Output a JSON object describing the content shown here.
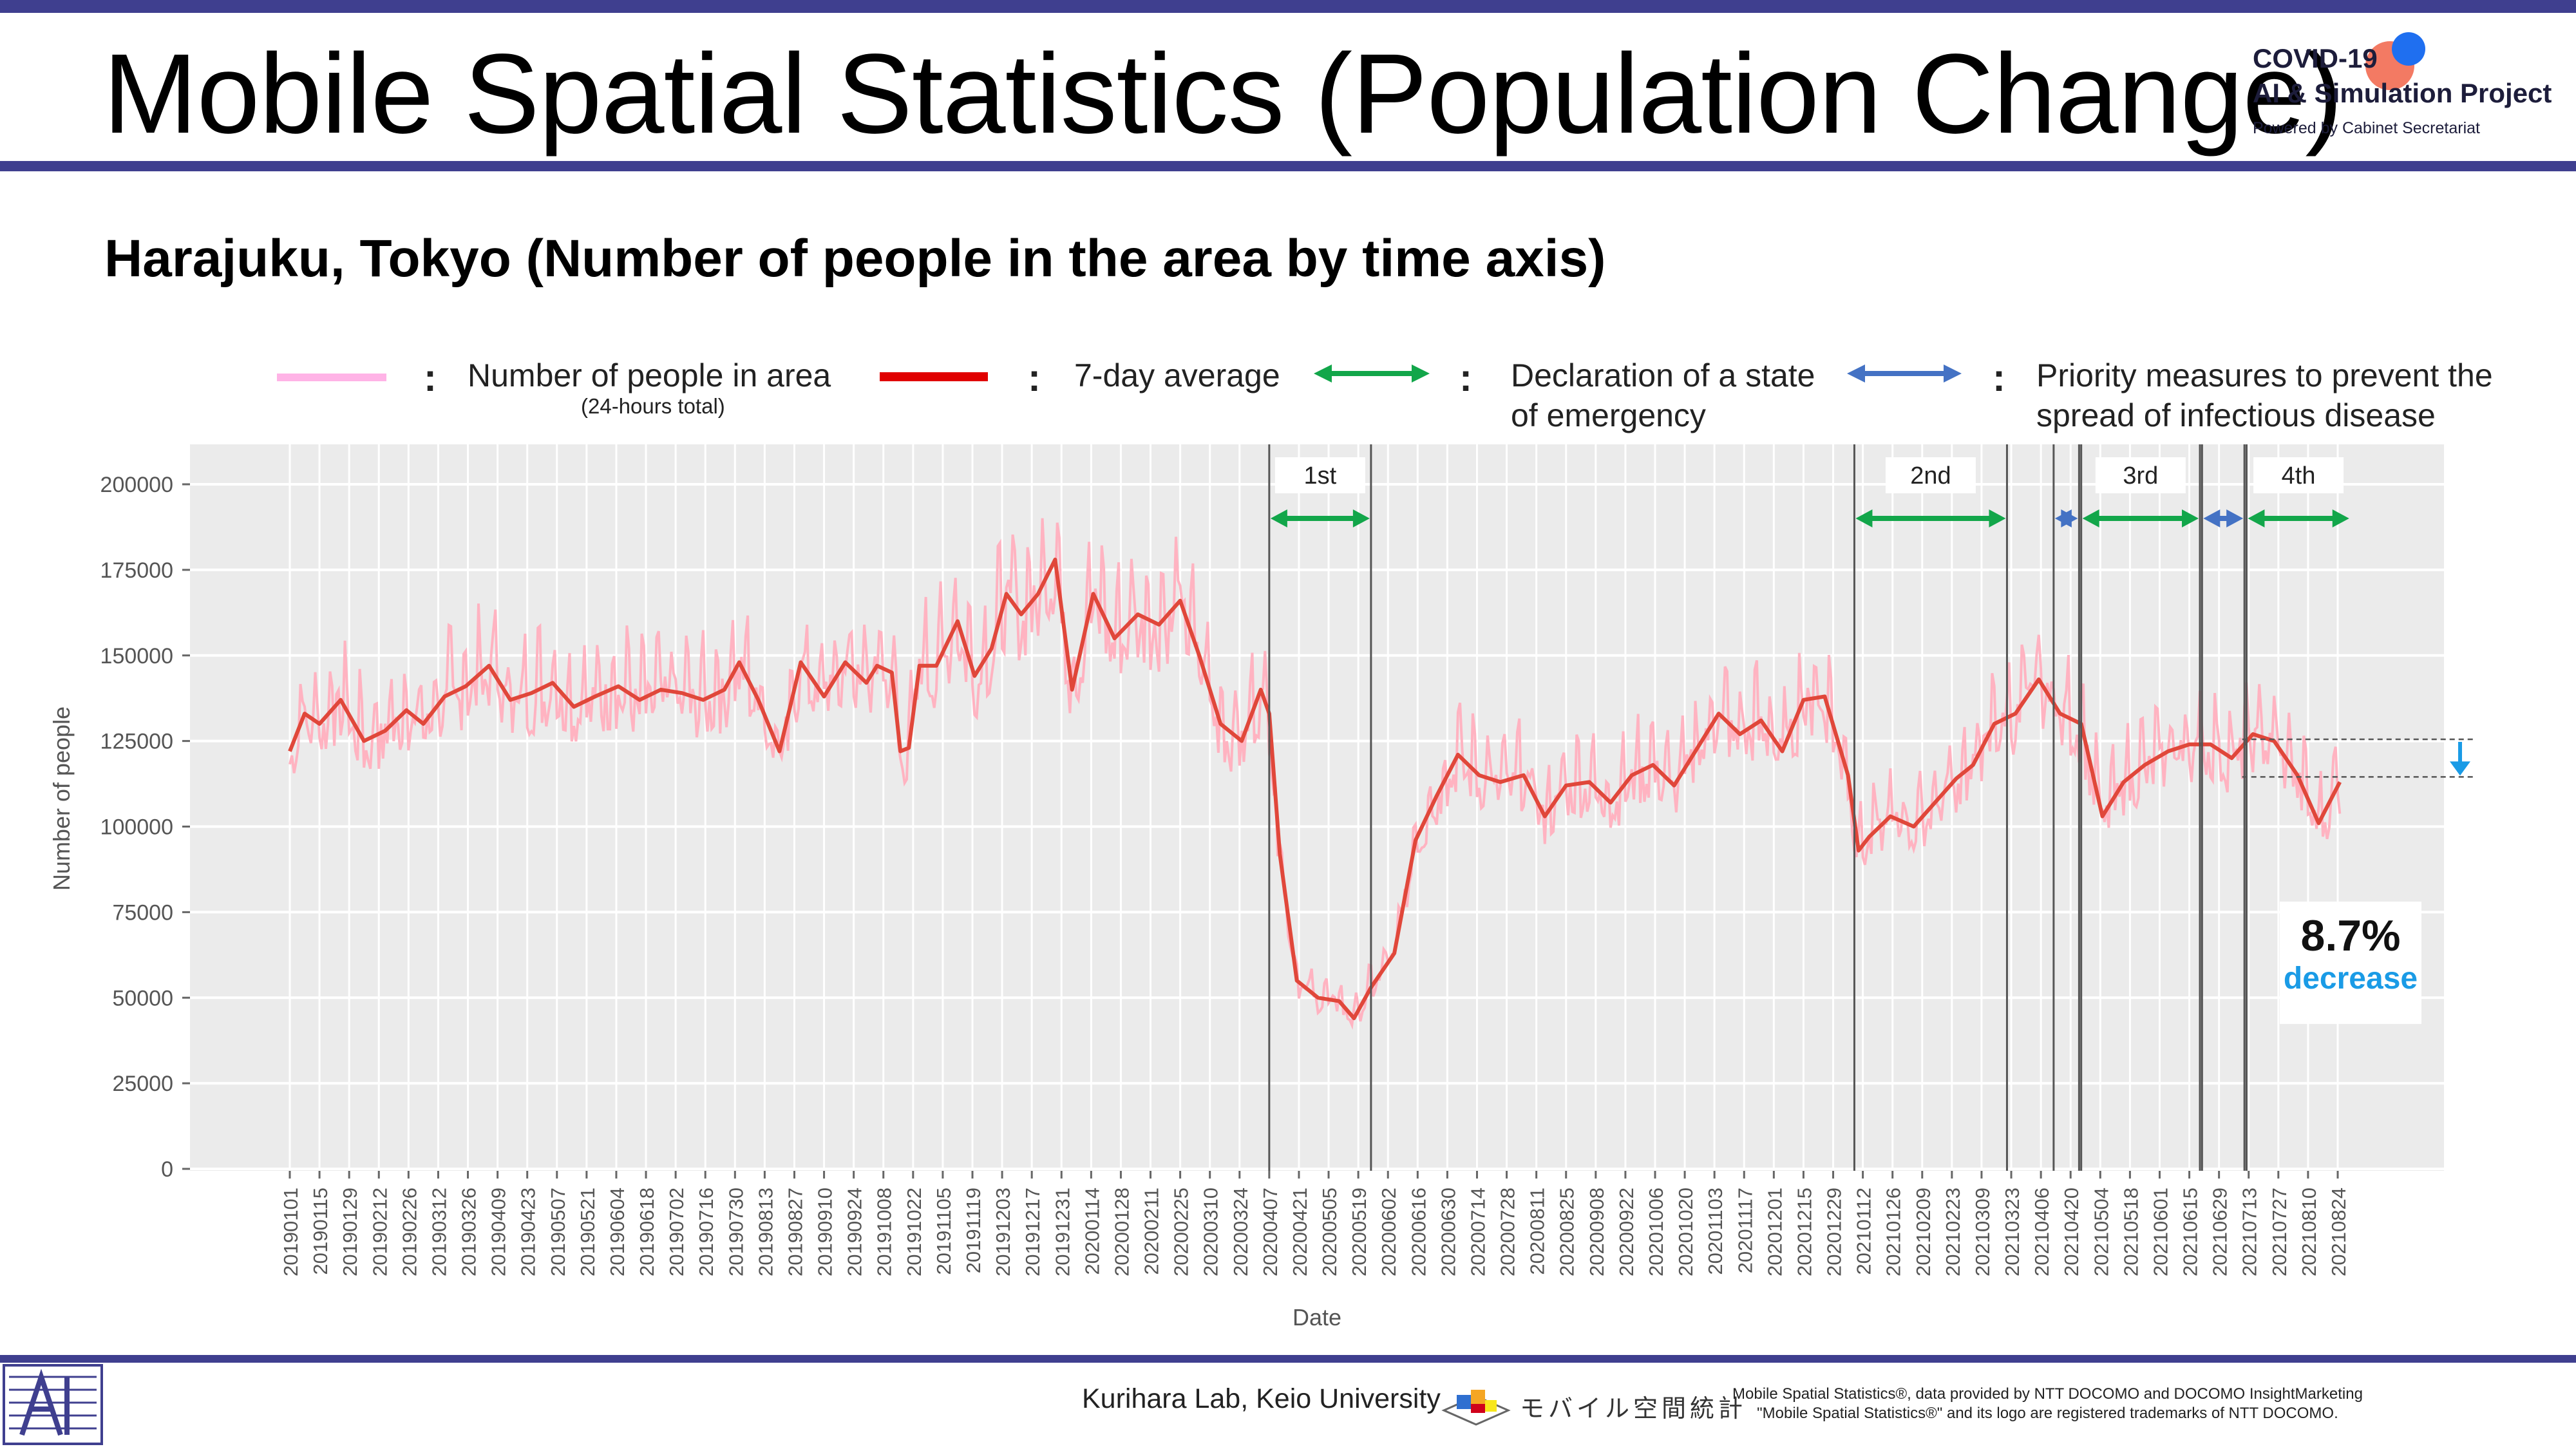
{
  "header": {
    "title": "Mobile Spatial Statistics (Population Change)",
    "subtitle": "Harajuku, Tokyo (Number of people in the area by time axis)",
    "logo": {
      "line1": "COVID-19",
      "line2": "AI & Simulation Project",
      "line3": "Powered by Cabinet Secretariat"
    }
  },
  "legend": {
    "colon": ":",
    "daily_label": "Number of people in area",
    "daily_sub": "(24-hours total)",
    "avg_label": "7-day average",
    "emergency_label_1": "Declaration of a state",
    "emergency_label_2": "of emergency",
    "priority_label_1": "Priority measures to prevent the",
    "priority_label_2": "spread of infectious disease"
  },
  "annotation": {
    "value": "8.7%",
    "label": "decrease"
  },
  "footer": {
    "lab": "Kurihara Lab, Keio University",
    "docomo": "モバイル空間統計",
    "notice_1": "Mobile Spatial Statistics®, data provided by NTT DOCOMO and DOCOMO InsightMarketing",
    "notice_2": "\"Mobile Spatial Statistics®\" and its logo are registered trademarks of NTT DOCOMO."
  },
  "colors": {
    "daily": "#ffb3c1",
    "average": "#e0473a",
    "emergency": "#12a64a",
    "priority": "#4472c4",
    "plot_bg": "#ebebeb",
    "header_bar": "#3f3f8f",
    "accent_blue": "#1a9be6"
  },
  "chart_data": {
    "type": "line",
    "xlabel": "Date",
    "ylabel": "Number of people",
    "ylim": [
      0,
      210000
    ],
    "yticks": [
      0,
      25000,
      50000,
      75000,
      100000,
      125000,
      150000,
      175000,
      200000
    ],
    "x_range": [
      "20190101",
      "20210901"
    ],
    "grid": true,
    "xticks": [
      "20190101",
      "20190115",
      "20190129",
      "20190212",
      "20190226",
      "20190312",
      "20190326",
      "20190409",
      "20190423",
      "20190507",
      "20190521",
      "20190604",
      "20190618",
      "20190702",
      "20190716",
      "20190730",
      "20190813",
      "20190827",
      "20190910",
      "20190924",
      "20191008",
      "20191022",
      "20191105",
      "20191119",
      "20191203",
      "20191217",
      "20191231",
      "20200114",
      "20200128",
      "20200211",
      "20200225",
      "20200310",
      "20200324",
      "20200407",
      "20200421",
      "20200505",
      "20200519",
      "20200602",
      "20200616",
      "20200630",
      "20200714",
      "20200728",
      "20200811",
      "20200825",
      "20200908",
      "20200922",
      "20201006",
      "20201020",
      "20201103",
      "20201117",
      "20201201",
      "20201215",
      "20201229",
      "20210112",
      "20210126",
      "20210209",
      "20210223",
      "20210309",
      "20210323",
      "20210406",
      "20210420",
      "20210504",
      "20210518",
      "20210601",
      "20210615",
      "20210629",
      "20210713",
      "20210727",
      "20210810",
      "20210824"
    ],
    "series": [
      {
        "name": "7-day average",
        "points": [
          [
            "20190101",
            122000
          ],
          [
            "20190108",
            133000
          ],
          [
            "20190115",
            130000
          ],
          [
            "20190125",
            137000
          ],
          [
            "20190205",
            125000
          ],
          [
            "20190215",
            128000
          ],
          [
            "20190225",
            134000
          ],
          [
            "20190305",
            130000
          ],
          [
            "20190315",
            138000
          ],
          [
            "20190325",
            141000
          ],
          [
            "20190405",
            147000
          ],
          [
            "20190415",
            137000
          ],
          [
            "20190425",
            139000
          ],
          [
            "20190505",
            142000
          ],
          [
            "20190515",
            135000
          ],
          [
            "20190525",
            138000
          ],
          [
            "20190605",
            141000
          ],
          [
            "20190615",
            137000
          ],
          [
            "20190625",
            140000
          ],
          [
            "20190705",
            139000
          ],
          [
            "20190715",
            137000
          ],
          [
            "20190725",
            140000
          ],
          [
            "20190801",
            148000
          ],
          [
            "20190810",
            137000
          ],
          [
            "20190820",
            122000
          ],
          [
            "20190830",
            148000
          ],
          [
            "20190910",
            138000
          ],
          [
            "20190920",
            148000
          ],
          [
            "20190930",
            142000
          ],
          [
            "20191005",
            147000
          ],
          [
            "20191012",
            145000
          ],
          [
            "20191016",
            122000
          ],
          [
            "20191020",
            123000
          ],
          [
            "20191025",
            147000
          ],
          [
            "20191102",
            147000
          ],
          [
            "20191112",
            160000
          ],
          [
            "20191120",
            144000
          ],
          [
            "20191128",
            152000
          ],
          [
            "20191205",
            168000
          ],
          [
            "20191212",
            162000
          ],
          [
            "20191220",
            168000
          ],
          [
            "20191228",
            178000
          ],
          [
            "20200105",
            140000
          ],
          [
            "20200115",
            168000
          ],
          [
            "20200125",
            155000
          ],
          [
            "20200205",
            162000
          ],
          [
            "20200215",
            159000
          ],
          [
            "20200225",
            166000
          ],
          [
            "20200305",
            150000
          ],
          [
            "20200315",
            130000
          ],
          [
            "20200325",
            125000
          ],
          [
            "20200403",
            140000
          ],
          [
            "20200407",
            133000
          ],
          [
            "20200412",
            92000
          ],
          [
            "20200420",
            55000
          ],
          [
            "20200430",
            50000
          ],
          [
            "20200510",
            49000
          ],
          [
            "20200517",
            44000
          ],
          [
            "20200525",
            53000
          ],
          [
            "20200605",
            63000
          ],
          [
            "20200615",
            96000
          ],
          [
            "20200625",
            109000
          ],
          [
            "20200705",
            121000
          ],
          [
            "20200715",
            115000
          ],
          [
            "20200725",
            113000
          ],
          [
            "20200805",
            115000
          ],
          [
            "20200815",
            103000
          ],
          [
            "20200825",
            112000
          ],
          [
            "20200905",
            113000
          ],
          [
            "20200915",
            107000
          ],
          [
            "20200925",
            115000
          ],
          [
            "20201005",
            118000
          ],
          [
            "20201015",
            112000
          ],
          [
            "20201025",
            122000
          ],
          [
            "20201105",
            133000
          ],
          [
            "20201115",
            127000
          ],
          [
            "20201125",
            131000
          ],
          [
            "20201205",
            122000
          ],
          [
            "20201215",
            137000
          ],
          [
            "20201225",
            138000
          ],
          [
            "20210105",
            115000
          ],
          [
            "20210110",
            93000
          ],
          [
            "20210115",
            97000
          ],
          [
            "20210125",
            103000
          ],
          [
            "20210205",
            100000
          ],
          [
            "20210215",
            107000
          ],
          [
            "20210225",
            114000
          ],
          [
            "20210305",
            118000
          ],
          [
            "20210315",
            130000
          ],
          [
            "20210325",
            133000
          ],
          [
            "20210405",
            143000
          ],
          [
            "20210415",
            133000
          ],
          [
            "20210425",
            130000
          ],
          [
            "20210505",
            103000
          ],
          [
            "20210515",
            113000
          ],
          [
            "20210525",
            118000
          ],
          [
            "20210605",
            122000
          ],
          [
            "20210615",
            124000
          ],
          [
            "20210625",
            124000
          ],
          [
            "20210705",
            120000
          ],
          [
            "20210715",
            127000
          ],
          [
            "20210725",
            125000
          ],
          [
            "20210805",
            115000
          ],
          [
            "20210815",
            101000
          ],
          [
            "20210825",
            113000
          ]
        ]
      }
    ],
    "periods": [
      {
        "label": "1st",
        "type": "emergency",
        "start": "20200407",
        "end": "20200525"
      },
      {
        "label": "2nd",
        "type": "emergency",
        "start": "20210108",
        "end": "20210321"
      },
      {
        "label": "",
        "type": "priority",
        "start": "20210412",
        "end": "20210424"
      },
      {
        "label": "3rd",
        "type": "emergency",
        "start": "20210425",
        "end": "20210620"
      },
      {
        "label": "",
        "type": "priority",
        "start": "20210621",
        "end": "20210711"
      },
      {
        "label": "4th",
        "type": "emergency",
        "start": "20210712",
        "end": "20210830"
      }
    ]
  }
}
